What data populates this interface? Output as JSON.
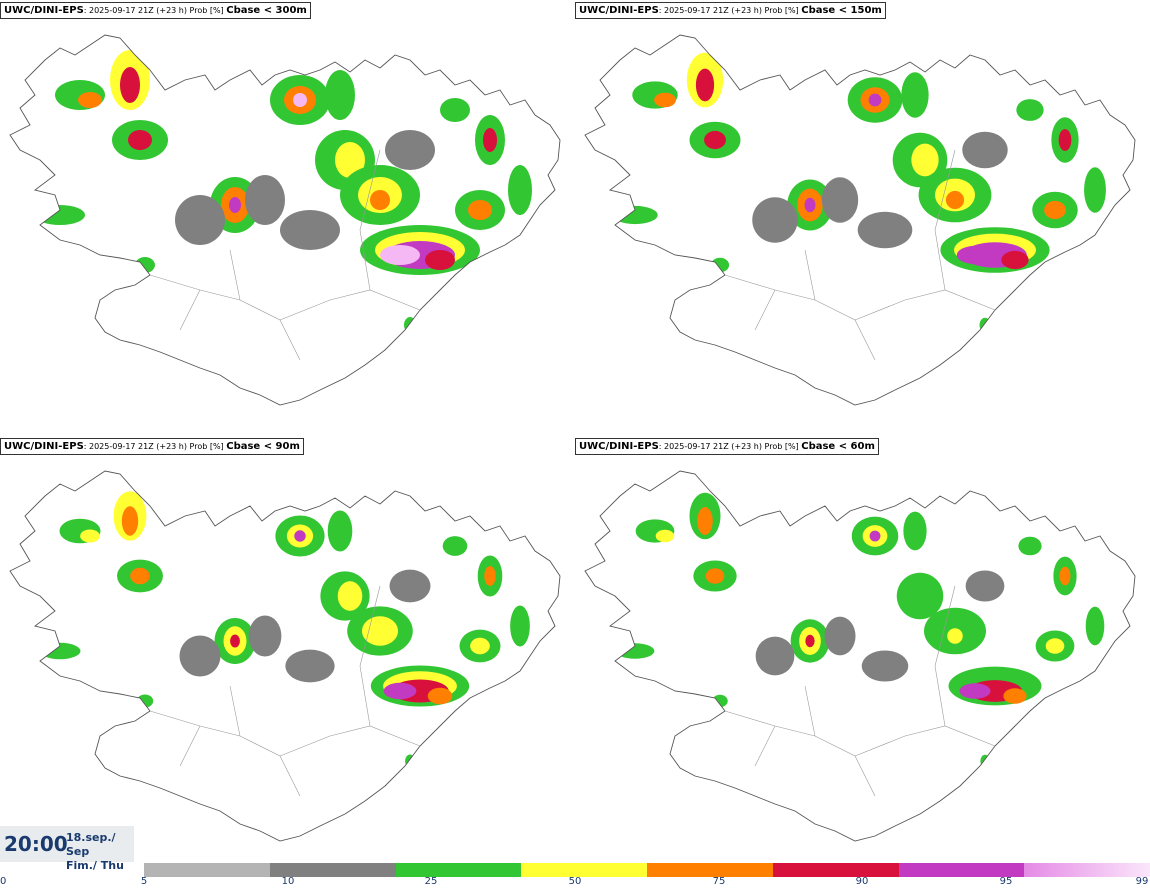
{
  "panels": [
    {
      "source": "UWC/DINI-EPS",
      "meta": ": 2025-09-17 21Z (+23 h) Prob [%] ",
      "threshold": "Cbase < 300m",
      "intensity": 1.0
    },
    {
      "source": "UWC/DINI-EPS",
      "meta": ": 2025-09-17 21Z (+23 h) Prob [%] ",
      "threshold": "Cbase < 150m",
      "intensity": 0.8
    },
    {
      "source": "UWC/DINI-EPS",
      "meta": ": 2025-09-17 21Z (+23 h) Prob [%] ",
      "threshold": "Cbase < 90m",
      "intensity": 0.6
    },
    {
      "source": "UWC/DINI-EPS",
      "meta": ": 2025-09-17 21Z (+23 h) Prob [%] ",
      "threshold": "Cbase < 60m",
      "intensity": 0.5
    }
  ],
  "valid_time": {
    "time": "20:00",
    "date_line1": "18.sep./ Sep",
    "date_line2": "Fim./ Thu"
  },
  "legend": {
    "colors": [
      "#b4b4b4",
      "#808080",
      "#33c633",
      "#ffff33",
      "#ff7f00",
      "#d8103c",
      "#c23ac2",
      "#f5b8f5"
    ],
    "ticks": [
      "0",
      "5",
      "10",
      "25",
      "50",
      "75",
      "90",
      "95",
      "99"
    ]
  }
}
